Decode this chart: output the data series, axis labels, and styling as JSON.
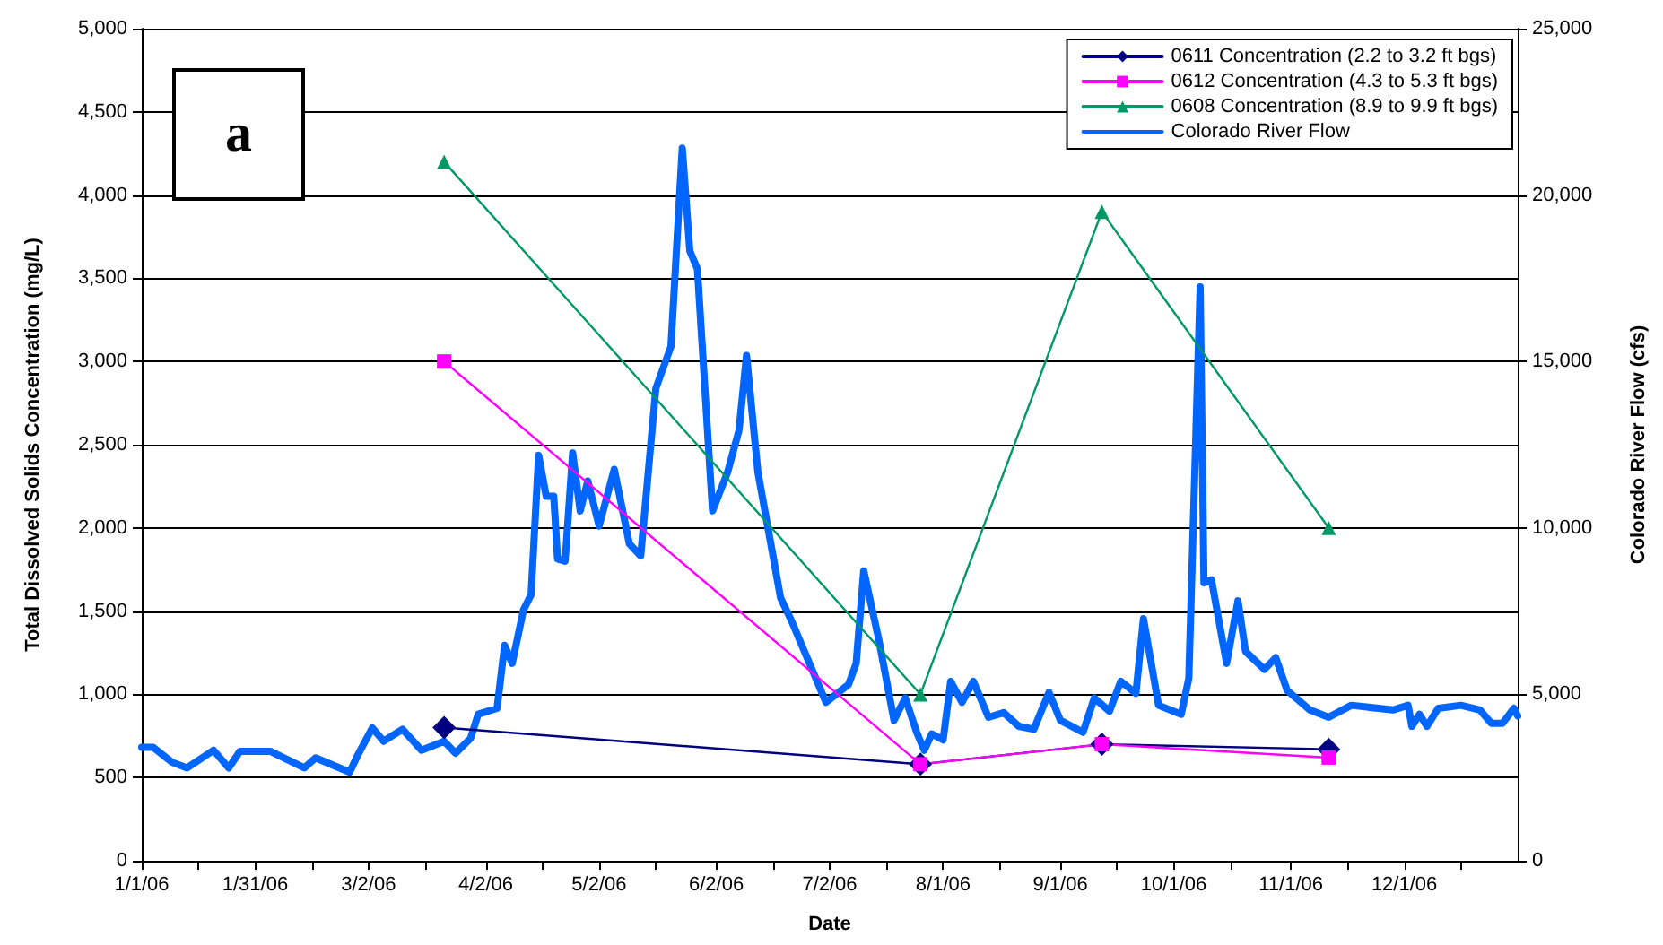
{
  "chart_data": {
    "type": "line",
    "xlabel": "Date",
    "ylabel": "Total Dissolved Solids Concentration (mg/L)",
    "y2label": "Colorado River Flow (cfs)",
    "annotations": [
      "a"
    ],
    "xlim": [
      "--01-01",
      "--12-31"
    ],
    "xticks": [
      {
        "value": "--01-01",
        "label": "1/1/06"
      },
      {
        "value": "--01-16",
        "label": null
      },
      {
        "value": "--01-31",
        "label": "1/31/06"
      },
      {
        "value": "--02-15",
        "label": null
      },
      {
        "value": "--03-02",
        "label": "3/2/06"
      },
      {
        "value": "--03-17",
        "label": null
      },
      {
        "value": "--04-02",
        "label": "4/2/06"
      },
      {
        "value": "--04-17",
        "label": null
      },
      {
        "value": "--05-02",
        "label": "5/2/06"
      },
      {
        "value": "--05-17",
        "label": null
      },
      {
        "value": "--06-02",
        "label": "6/2/06"
      },
      {
        "value": "--06-17",
        "label": null
      },
      {
        "value": "--07-02",
        "label": "7/2/06"
      },
      {
        "value": "--07-17",
        "label": null
      },
      {
        "value": "--08-01",
        "label": "8/1/06"
      },
      {
        "value": "--08-16",
        "label": null
      },
      {
        "value": "--09-01",
        "label": "9/1/06"
      },
      {
        "value": "--09-16",
        "label": null
      },
      {
        "value": "--10-01",
        "label": "10/1/06"
      },
      {
        "value": "--10-16",
        "label": null
      },
      {
        "value": "--11-01",
        "label": "11/1/06"
      },
      {
        "value": "--11-16",
        "label": null
      },
      {
        "value": "--12-01",
        "label": "12/1/06"
      },
      {
        "value": "--12-16",
        "label": null
      }
    ],
    "ylim": [
      0,
      5000
    ],
    "yticks": [
      0,
      500,
      {
        "value": 1000,
        "label": "1,000"
      },
      {
        "value": 1500,
        "label": "1,500"
      },
      {
        "value": 2000,
        "label": "2,000"
      },
      {
        "value": 2500,
        "label": "2,500"
      },
      {
        "value": 3000,
        "label": "3,000"
      },
      {
        "value": 3500,
        "label": "3,500"
      },
      {
        "value": 4000,
        "label": "4,000"
      },
      {
        "value": 4500,
        "label": "4,500"
      },
      {
        "value": 5000,
        "label": "5,000"
      }
    ],
    "y2lim": [
      0,
      25000
    ],
    "y2ticks": [
      0,
      {
        "value": 5000,
        "label": "5,000"
      },
      {
        "value": 10000,
        "label": "10,000"
      },
      {
        "value": 15000,
        "label": "15,000"
      },
      {
        "value": 20000,
        "label": "20,000"
      },
      {
        "value": 25000,
        "label": "25,000"
      }
    ],
    "grid": "y",
    "legend": "top right",
    "series": [
      {
        "name": "0611 Concentration (2.2 to 3.2 ft bgs)",
        "color": "#000080",
        "marker": "diamond",
        "x": [
          "--03-22",
          "--07-26",
          "--09-12",
          "--11-11"
        ],
        "values": [
          800,
          580,
          700,
          670
        ]
      },
      {
        "name": "0612 Concentration (4.3 to 5.3 ft bgs)",
        "color": "#ff00ff",
        "marker": "square",
        "x": [
          "--03-22",
          "--07-26",
          "--09-12",
          "--11-11"
        ],
        "values": [
          3000,
          580,
          700,
          620
        ]
      },
      {
        "name": "0608 Concentration (8.9 to 9.9 ft bgs)",
        "color": "#009966",
        "marker": "triangle",
        "x": [
          "--03-22",
          "--07-26",
          "--09-12",
          "--11-11"
        ],
        "values": [
          4200,
          1000,
          3900,
          2000
        ]
      },
      {
        "name": "Colorado River Flow",
        "color": "#0066ff",
        "marker": "none",
        "axis": "y2",
        "x": [
          "--01-01",
          "--01-04",
          "--01-09",
          "--01-13",
          "--01-20",
          "--01-24",
          "--01-27",
          "--02-04",
          "--02-13",
          "--02-16",
          "--02-25",
          "--02-27",
          "--03-03",
          "--03-06",
          "--03-11",
          "--03-16",
          "--03-22",
          "--03-25",
          "--03-29",
          "--03-31",
          "--04-05",
          "--04-07",
          "--04-09",
          "--04-12",
          "--04-14",
          "--04-16",
          "--04-18",
          "--04-20",
          "--04-21",
          "--04-23",
          "--04-25",
          "--04-27",
          "--04-29",
          "--05-02",
          "--05-06",
          "--05-10",
          "--05-13",
          "--05-17",
          "--05-21",
          "--05-24",
          "--05-26",
          "--05-28",
          "--06-01",
          "--06-05",
          "--06-08",
          "--06-10",
          "--06-13",
          "--06-19",
          "--06-22",
          "--07-01",
          "--07-07",
          "--07-09",
          "--07-11",
          "--07-15",
          "--07-19",
          "--07-22",
          "--07-25",
          "--07-27",
          "--07-29",
          "--08-01",
          "--08-03",
          "--08-06",
          "--08-09",
          "--08-13",
          "--08-17",
          "--08-21",
          "--08-25",
          "--08-29",
          "--09-01",
          "--09-07",
          "--09-10",
          "--09-14",
          "--09-17",
          "--09-21",
          "--09-23",
          "--09-27",
          "--10-03",
          "--10-05",
          "--10-08",
          "--10-09",
          "--10-11",
          "--10-15",
          "--10-18",
          "--10-20",
          "--10-25",
          "--10-28",
          "--10-31",
          "--11-06",
          "--11-11",
          "--11-17",
          "--11-28",
          "--12-02",
          "--12-03",
          "--12-05",
          "--12-07",
          "--12-10",
          "--12-16",
          "--12-21",
          "--12-24",
          "--12-27",
          "--12-30",
          "--12-31"
        ],
        "values": [
          3410,
          3410,
          2960,
          2790,
          3320,
          2790,
          3290,
          3290,
          2790,
          3090,
          2660,
          3140,
          3990,
          3590,
          3950,
          3320,
          3590,
          3230,
          3680,
          4400,
          4580,
          6470,
          5930,
          7540,
          7990,
          12180,
          10950,
          10950,
          9070,
          9000,
          12250,
          10510,
          11410,
          10060,
          11760,
          9520,
          9160,
          14190,
          15450,
          21410,
          18320,
          17780,
          10510,
          11680,
          12930,
          15180,
          11680,
          7900,
          7180,
          4760,
          5300,
          5930,
          8710,
          6640,
          4220,
          4890,
          3860,
          3320,
          3810,
          3630,
          5390,
          4760,
          5390,
          4310,
          4450,
          4040,
          3950,
          5060,
          4220,
          3860,
          4890,
          4490,
          5390,
          5030,
          7270,
          4670,
          4400,
          5480,
          17240,
          8350,
          8440,
          5930,
          7810,
          6290,
          5750,
          6100,
          5120,
          4530,
          4310,
          4670,
          4530,
          4670,
          4040,
          4400,
          4040,
          4580,
          4670,
          4530,
          4130,
          4130,
          4580,
          4350
        ]
      }
    ]
  }
}
